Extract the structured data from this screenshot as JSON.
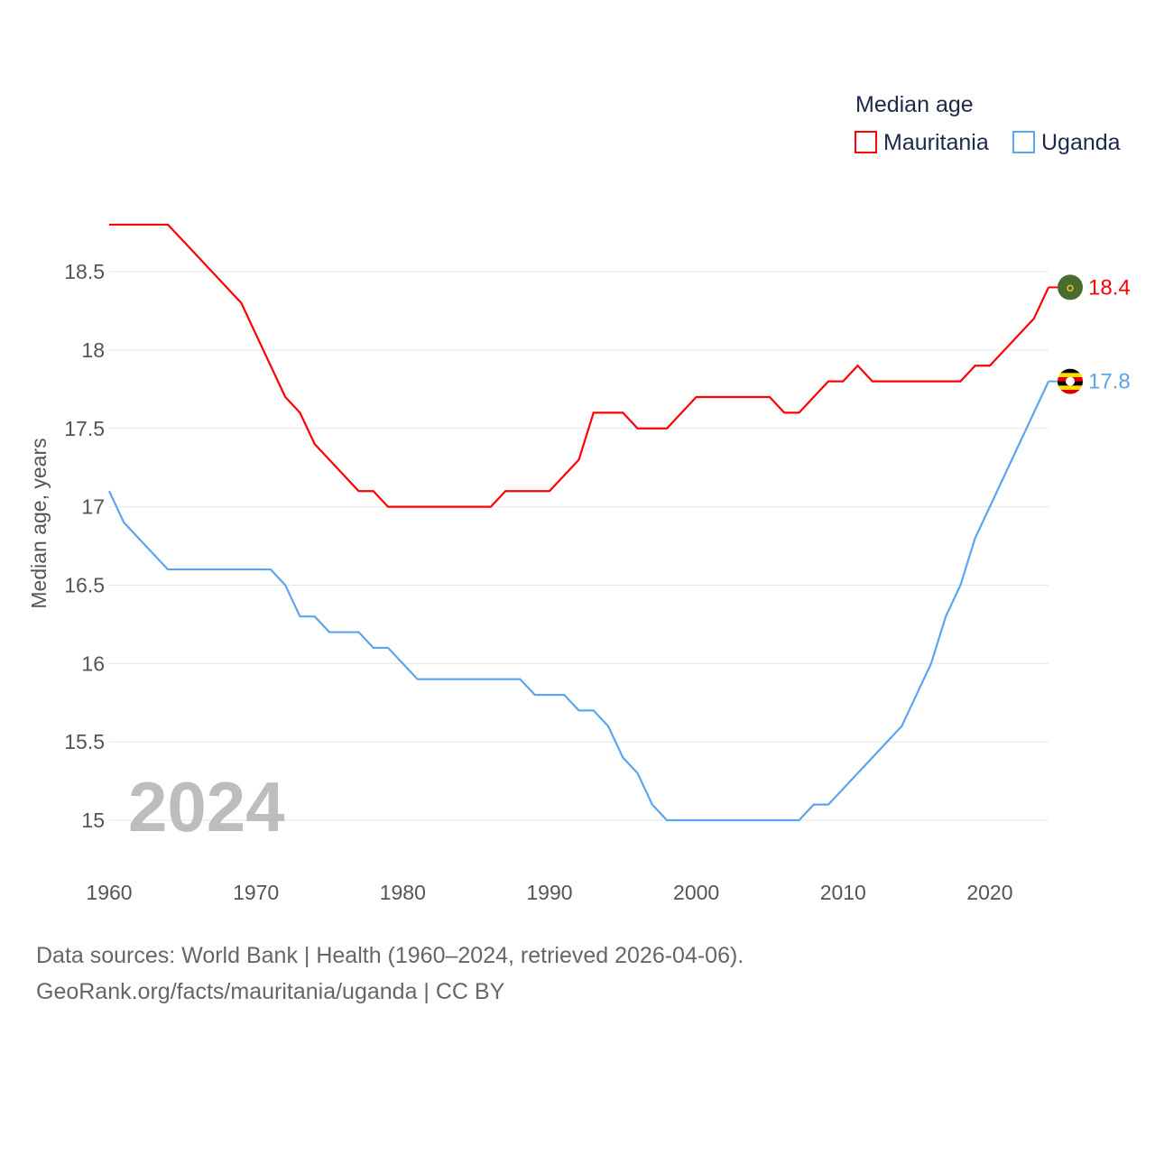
{
  "chart_data": {
    "type": "line",
    "title": "",
    "ylabel": "Median age, years",
    "xlabel": "",
    "year_label": "2024",
    "xlim": [
      1960,
      2024
    ],
    "ylim": [
      14.7,
      19.0
    ],
    "x_ticks": [
      1960,
      1970,
      1980,
      1990,
      2000,
      2010,
      2020
    ],
    "y_ticks": [
      15,
      15.5,
      16,
      16.5,
      17,
      17.5,
      18,
      18.5
    ],
    "y_tick_labels": [
      "15",
      "15.5",
      "16",
      "16.5",
      "17",
      "17.5",
      "18",
      "18.5"
    ],
    "x_tick_labels": [
      "1960",
      "1970",
      "1980",
      "1990",
      "2000",
      "2010",
      "2020"
    ],
    "grid": true,
    "legend": {
      "title": "Median age",
      "placement": "top-right"
    },
    "x": [
      1960,
      1961,
      1962,
      1963,
      1964,
      1965,
      1966,
      1967,
      1968,
      1969,
      1970,
      1971,
      1972,
      1973,
      1974,
      1975,
      1976,
      1977,
      1978,
      1979,
      1980,
      1981,
      1982,
      1983,
      1984,
      1985,
      1986,
      1987,
      1988,
      1989,
      1990,
      1991,
      1992,
      1993,
      1994,
      1995,
      1996,
      1997,
      1998,
      1999,
      2000,
      2001,
      2002,
      2003,
      2004,
      2005,
      2006,
      2007,
      2008,
      2009,
      2010,
      2011,
      2012,
      2013,
      2014,
      2015,
      2016,
      2017,
      2018,
      2019,
      2020,
      2021,
      2022,
      2023,
      2024
    ],
    "series": [
      {
        "name": "Mauritania",
        "color": "#ff0000",
        "end_label": "18.4",
        "values": [
          18.8,
          18.8,
          18.8,
          18.8,
          18.8,
          18.7,
          18.6,
          18.5,
          18.4,
          18.3,
          18.1,
          17.9,
          17.7,
          17.6,
          17.4,
          17.3,
          17.2,
          17.1,
          17.1,
          17.0,
          17.0,
          17.0,
          17.0,
          17.0,
          17.0,
          17.0,
          17.0,
          17.1,
          17.1,
          17.1,
          17.1,
          17.2,
          17.3,
          17.6,
          17.6,
          17.6,
          17.5,
          17.5,
          17.5,
          17.6,
          17.7,
          17.7,
          17.7,
          17.7,
          17.7,
          17.7,
          17.6,
          17.6,
          17.7,
          17.8,
          17.8,
          17.9,
          17.8,
          17.8,
          17.8,
          17.8,
          17.8,
          17.8,
          17.8,
          17.9,
          17.9,
          18.0,
          18.1,
          18.2,
          18.4
        ]
      },
      {
        "name": "Uganda",
        "color": "#5aa5ef",
        "end_label": "17.8",
        "values": [
          17.1,
          16.9,
          16.8,
          16.7,
          16.6,
          16.6,
          16.6,
          16.6,
          16.6,
          16.6,
          16.6,
          16.6,
          16.5,
          16.3,
          16.3,
          16.2,
          16.2,
          16.2,
          16.1,
          16.1,
          16.0,
          15.9,
          15.9,
          15.9,
          15.9,
          15.9,
          15.9,
          15.9,
          15.9,
          15.8,
          15.8,
          15.8,
          15.7,
          15.7,
          15.6,
          15.4,
          15.3,
          15.1,
          15.0,
          15.0,
          15.0,
          15.0,
          15.0,
          15.0,
          15.0,
          15.0,
          15.0,
          15.0,
          15.1,
          15.1,
          15.2,
          15.3,
          15.4,
          15.5,
          15.6,
          15.8,
          16.0,
          16.3,
          16.5,
          16.8,
          17.0,
          17.2,
          17.4,
          17.6,
          17.8
        ]
      }
    ]
  },
  "footer": {
    "line1": "Data sources: World Bank | Health (1960–2024, retrieved 2026-04-06).",
    "line2": "GeoRank.org/facts/mauritania/uganda | CC BY"
  }
}
